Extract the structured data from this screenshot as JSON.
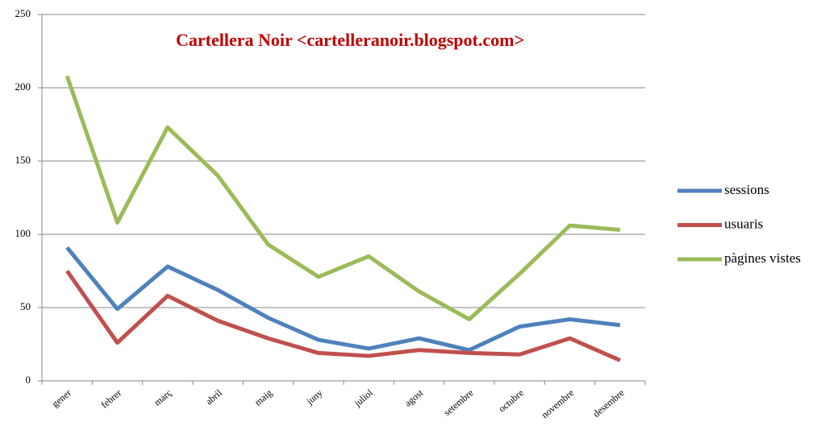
{
  "chart_data": {
    "type": "line",
    "title": "Cartellera Noir  <cartelleranoir.blogspot.com>",
    "categories": [
      "gener",
      "febrer",
      "març",
      "abril",
      "maig",
      "juny",
      "juliol",
      "agost",
      "setembre",
      "octubre",
      "novembre",
      "desembre"
    ],
    "series": [
      {
        "name": "sessions",
        "color": "#4f81bd",
        "values": [
          91,
          49,
          78,
          62,
          43,
          28,
          22,
          29,
          21,
          37,
          42,
          38
        ]
      },
      {
        "name": "usuaris",
        "color": "#c0504d",
        "values": [
          75,
          26,
          58,
          41,
          29,
          19,
          17,
          21,
          19,
          18,
          29,
          14
        ]
      },
      {
        "name": "pàgines vistes",
        "color": "#9bbb59",
        "values": [
          208,
          108,
          173,
          140,
          93,
          71,
          85,
          61,
          42,
          73,
          106,
          103
        ]
      }
    ],
    "ylim": [
      0,
      250
    ],
    "yticks": [
      0,
      50,
      100,
      150,
      200,
      250
    ],
    "grid": true,
    "legend": "right"
  }
}
